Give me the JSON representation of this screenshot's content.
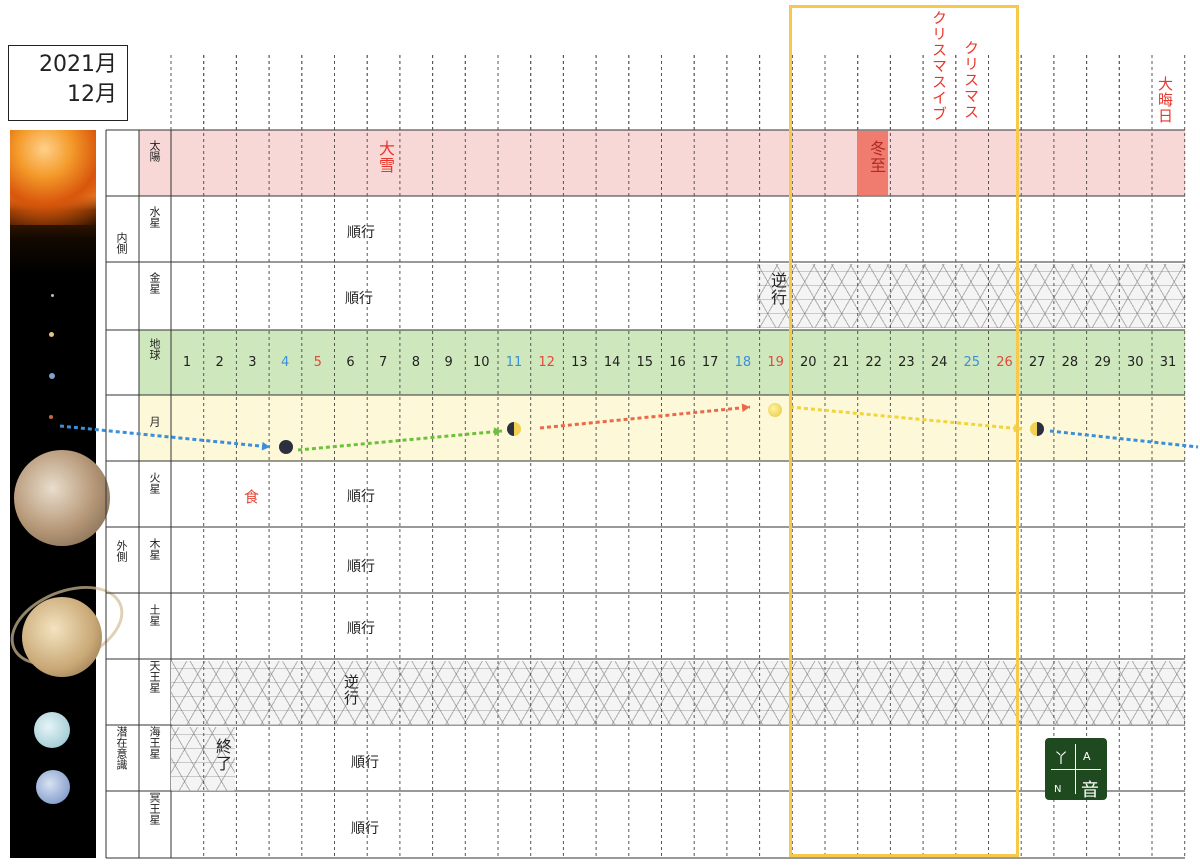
{
  "title": {
    "year": "2021月",
    "month": "12月"
  },
  "days": [
    "1",
    "2",
    "3",
    "4",
    "5",
    "6",
    "7",
    "8",
    "9",
    "10",
    "11",
    "12",
    "13",
    "14",
    "15",
    "16",
    "17",
    "18",
    "19",
    "20",
    "21",
    "22",
    "23",
    "24",
    "25",
    "26",
    "27",
    "28",
    "29",
    "30",
    "31"
  ],
  "day_colors": {
    "4": "#3a8fd8",
    "5": "#e24a3a",
    "11": "#3a8fd8",
    "12": "#e24a3a",
    "18": "#3a8fd8",
    "19": "#e24a3a",
    "25": "#3a8fd8",
    "26": "#e24a3a"
  },
  "groups": {
    "inner": "内側",
    "outer": "外側",
    "subconscious": "潜在意識"
  },
  "rows": {
    "sun": "太陽",
    "mercury": "水星",
    "venus": "金星",
    "earth": "地球",
    "moon": "月",
    "mars": "火星",
    "jupiter": "木星",
    "saturn": "土星",
    "uranus": "天王星",
    "neptune": "海王星",
    "pluto": "冥王星"
  },
  "events": {
    "taisetsu": "大雪",
    "touji": "冬至",
    "christmas_eve": "クリスマスイブ",
    "christmas": "クリスマス",
    "omisoka": "大晦日",
    "mercury_status": "順行",
    "venus_retro": "逆行",
    "venus_status": "順行",
    "mars_eclipse": "食",
    "mars_status": "順行",
    "jupiter_status": "順行",
    "saturn_status": "順行",
    "uranus_retro": "逆行",
    "neptune_end": "終了",
    "neptune_status": "順行",
    "pluto_status": "順行"
  },
  "logo": {
    "a": "A",
    "n": "N",
    "on": "音"
  },
  "colors": {
    "sun_band": "#f8d7d7",
    "earth_band": "#cfe7bd",
    "moon_band": "#fdf8d8",
    "highlight": "#f6c94a",
    "touji_bg": "#ef7c6f"
  }
}
